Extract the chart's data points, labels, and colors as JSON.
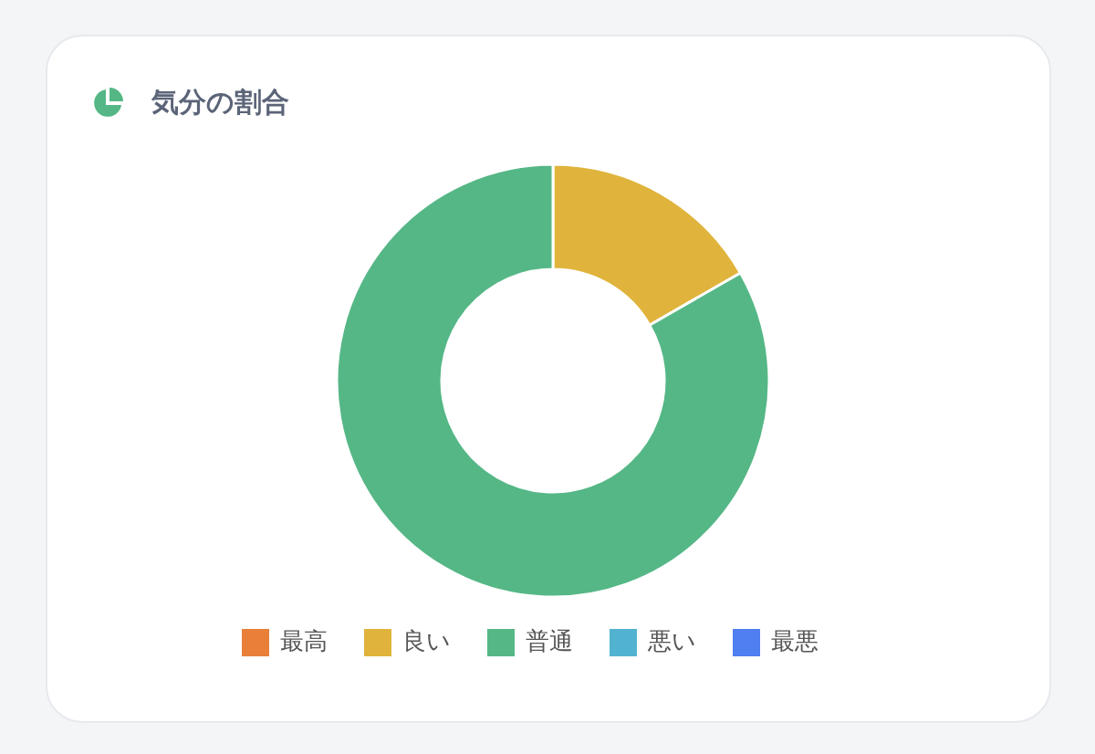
{
  "chart_data": {
    "type": "donut",
    "title": "気分の割合",
    "categories": [
      "最高",
      "良い",
      "普通",
      "悪い",
      "最悪"
    ],
    "values": [
      0,
      16.7,
      83.3,
      0,
      0
    ],
    "colors": [
      "#e8803a",
      "#e0b43c",
      "#55b786",
      "#52b3d0",
      "#4f7ff0"
    ],
    "legend": "bottom"
  }
}
